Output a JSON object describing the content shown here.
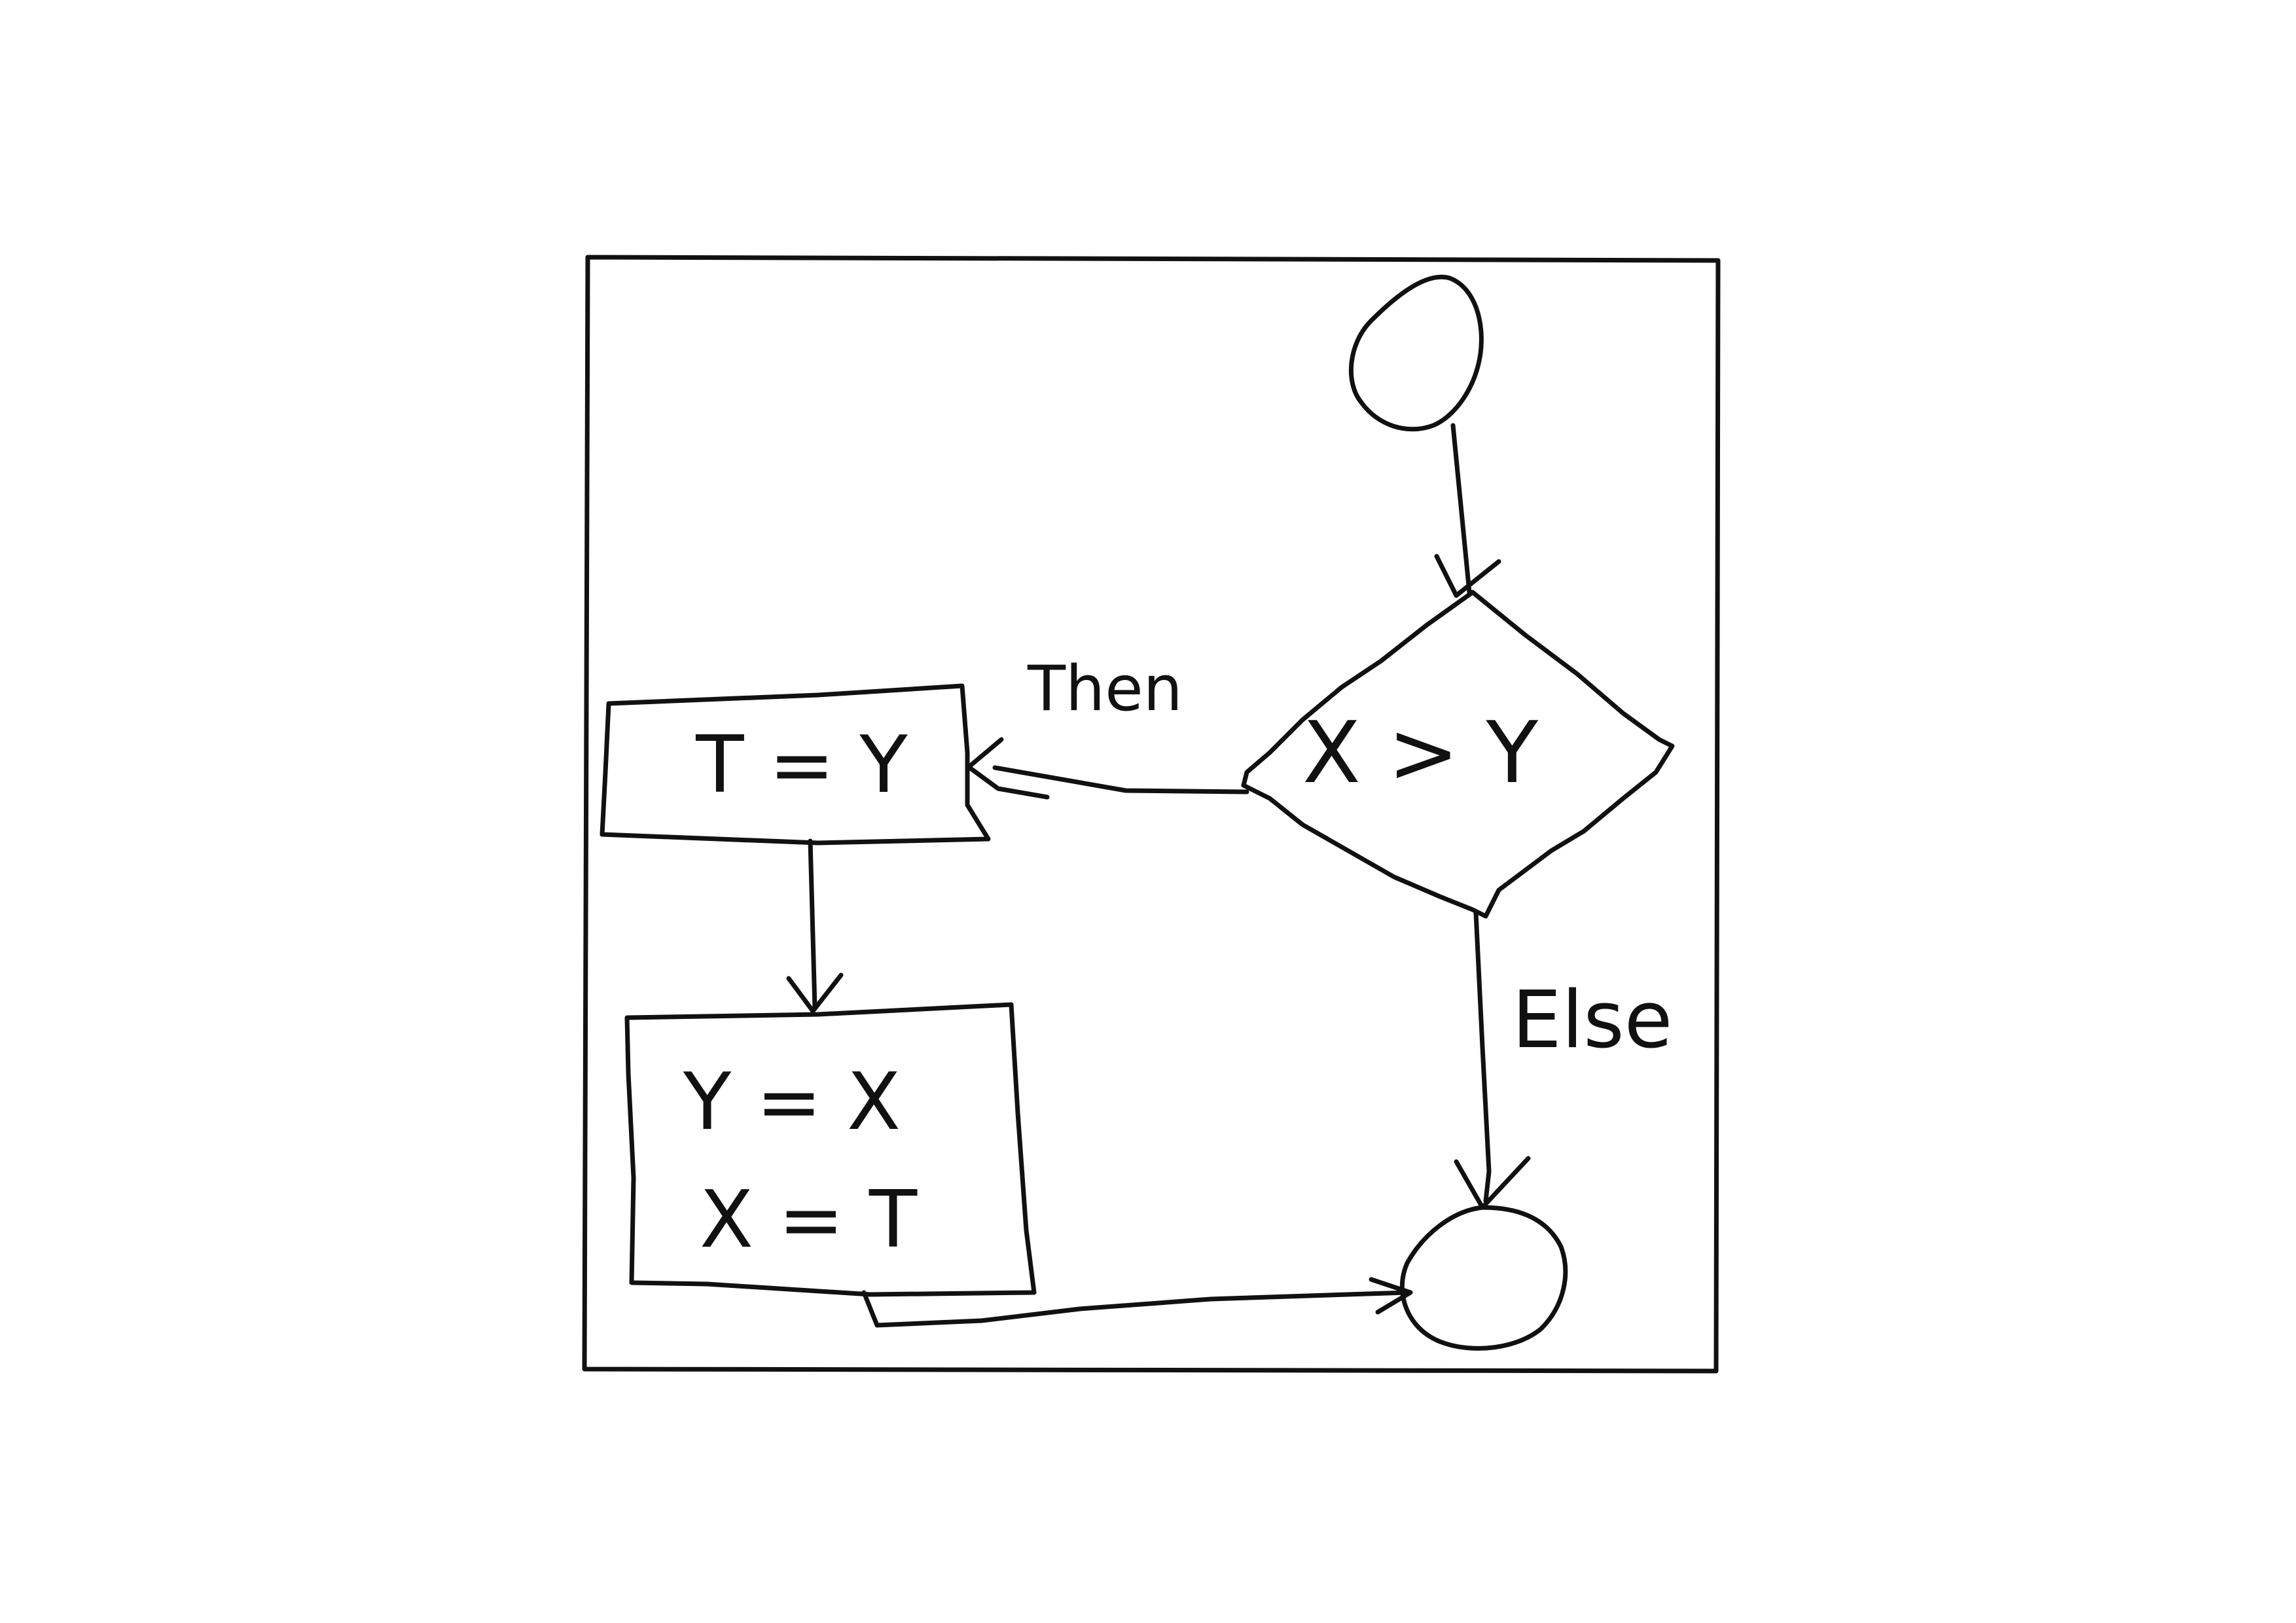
{
  "diagram": {
    "type": "flowchart",
    "style": "hand-drawn",
    "colors": {
      "background": "#ffffff",
      "ink": "#111111"
    },
    "nodes": {
      "start": {
        "shape": "circle",
        "label": ""
      },
      "decision": {
        "shape": "diamond",
        "label": "X > Y"
      },
      "assign_t": {
        "shape": "rectangle",
        "label": "T = Y"
      },
      "swap": {
        "shape": "rectangle",
        "lines": [
          "Y = X",
          "X = T"
        ]
      },
      "end": {
        "shape": "circle",
        "label": ""
      }
    },
    "edges": [
      {
        "from": "start",
        "to": "decision",
        "label": ""
      },
      {
        "from": "decision",
        "to": "assign_t",
        "label": "Then"
      },
      {
        "from": "assign_t",
        "to": "swap",
        "label": ""
      },
      {
        "from": "swap",
        "to": "end",
        "label": ""
      },
      {
        "from": "decision",
        "to": "end",
        "label": "Else"
      }
    ]
  }
}
